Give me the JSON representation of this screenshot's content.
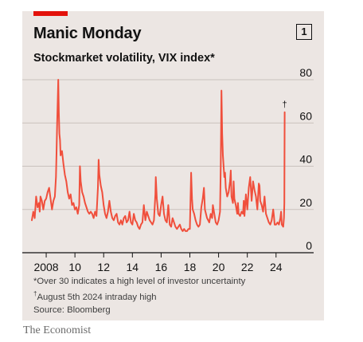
{
  "card": {
    "figure_number": "1"
  },
  "chart_data": {
    "type": "line",
    "title": "Manic Monday",
    "subtitle": "Stockmarket volatility, VIX index*",
    "xlabel": "",
    "ylabel": "",
    "xlim": [
      2007.0,
      2024.9
    ],
    "ylim": [
      0,
      80
    ],
    "y_ticks": [
      0,
      20,
      40,
      60,
      80
    ],
    "x_tick_labels": [
      "2008",
      "10",
      "12",
      "14",
      "16",
      "18",
      "20",
      "22",
      "24"
    ],
    "x_tick_years": [
      2008,
      2010,
      2012,
      2014,
      2016,
      2018,
      2020,
      2022,
      2024
    ],
    "grid": true,
    "line_color": "#f04f3c",
    "annotation": {
      "label": "†",
      "x": 2024.6,
      "y": 65
    },
    "series": [
      {
        "points": [
          [
            2007.0,
            15
          ],
          [
            2007.1,
            19
          ],
          [
            2007.2,
            16
          ],
          [
            2007.3,
            26
          ],
          [
            2007.4,
            21
          ],
          [
            2007.5,
            23
          ],
          [
            2007.55,
            19
          ],
          [
            2007.6,
            26
          ],
          [
            2007.7,
            24
          ],
          [
            2007.8,
            20
          ],
          [
            2007.9,
            24
          ],
          [
            2008.0,
            25
          ],
          [
            2008.1,
            28
          ],
          [
            2008.2,
            30
          ],
          [
            2008.3,
            25
          ],
          [
            2008.4,
            20
          ],
          [
            2008.5,
            24
          ],
          [
            2008.6,
            26
          ],
          [
            2008.68,
            35
          ],
          [
            2008.72,
            46
          ],
          [
            2008.76,
            60
          ],
          [
            2008.8,
            70
          ],
          [
            2008.84,
            80
          ],
          [
            2008.88,
            65
          ],
          [
            2008.92,
            55
          ],
          [
            2008.96,
            52
          ],
          [
            2009.0,
            45
          ],
          [
            2009.1,
            47
          ],
          [
            2009.2,
            41
          ],
          [
            2009.3,
            36
          ],
          [
            2009.4,
            33
          ],
          [
            2009.5,
            28
          ],
          [
            2009.6,
            25
          ],
          [
            2009.7,
            27
          ],
          [
            2009.8,
            22
          ],
          [
            2009.9,
            23
          ],
          [
            2010.0,
            20
          ],
          [
            2010.1,
            21
          ],
          [
            2010.2,
            18
          ],
          [
            2010.3,
            22
          ],
          [
            2010.35,
            40
          ],
          [
            2010.4,
            33
          ],
          [
            2010.5,
            28
          ],
          [
            2010.6,
            26
          ],
          [
            2010.7,
            23
          ],
          [
            2010.8,
            21
          ],
          [
            2010.9,
            19
          ],
          [
            2011.0,
            18
          ],
          [
            2011.1,
            19
          ],
          [
            2011.2,
            18
          ],
          [
            2011.3,
            16
          ],
          [
            2011.4,
            19
          ],
          [
            2011.5,
            17
          ],
          [
            2011.6,
            30
          ],
          [
            2011.65,
            43
          ],
          [
            2011.7,
            36
          ],
          [
            2011.8,
            31
          ],
          [
            2011.9,
            28
          ],
          [
            2012.0,
            22
          ],
          [
            2012.1,
            18
          ],
          [
            2012.2,
            16
          ],
          [
            2012.3,
            19
          ],
          [
            2012.4,
            24
          ],
          [
            2012.5,
            19
          ],
          [
            2012.6,
            16
          ],
          [
            2012.7,
            15
          ],
          [
            2012.8,
            17
          ],
          [
            2012.9,
            18
          ],
          [
            2013.0,
            14
          ],
          [
            2013.1,
            13
          ],
          [
            2013.2,
            15
          ],
          [
            2013.3,
            13
          ],
          [
            2013.4,
            16
          ],
          [
            2013.5,
            17
          ],
          [
            2013.6,
            14
          ],
          [
            2013.7,
            15
          ],
          [
            2013.8,
            19
          ],
          [
            2013.9,
            14
          ],
          [
            2014.0,
            13
          ],
          [
            2014.1,
            18
          ],
          [
            2014.2,
            15
          ],
          [
            2014.3,
            14
          ],
          [
            2014.4,
            12
          ],
          [
            2014.5,
            11
          ],
          [
            2014.6,
            13
          ],
          [
            2014.7,
            14
          ],
          [
            2014.8,
            22
          ],
          [
            2014.9,
            15
          ],
          [
            2015.0,
            19
          ],
          [
            2015.1,
            17
          ],
          [
            2015.2,
            15
          ],
          [
            2015.3,
            14
          ],
          [
            2015.4,
            13
          ],
          [
            2015.5,
            15
          ],
          [
            2015.6,
            27
          ],
          [
            2015.63,
            35
          ],
          [
            2015.7,
            25
          ],
          [
            2015.8,
            18
          ],
          [
            2015.9,
            17
          ],
          [
            2016.0,
            22
          ],
          [
            2016.1,
            26
          ],
          [
            2016.2,
            18
          ],
          [
            2016.3,
            15
          ],
          [
            2016.4,
            14
          ],
          [
            2016.5,
            22
          ],
          [
            2016.55,
            18
          ],
          [
            2016.6,
            13
          ],
          [
            2016.7,
            12
          ],
          [
            2016.8,
            16
          ],
          [
            2016.9,
            14
          ],
          [
            2017.0,
            12
          ],
          [
            2017.1,
            11
          ],
          [
            2017.2,
            12
          ],
          [
            2017.3,
            13
          ],
          [
            2017.4,
            11
          ],
          [
            2017.5,
            10
          ],
          [
            2017.6,
            11
          ],
          [
            2017.7,
            10
          ],
          [
            2017.8,
            10
          ],
          [
            2017.9,
            11
          ],
          [
            2018.0,
            11
          ],
          [
            2018.09,
            37
          ],
          [
            2018.15,
            25
          ],
          [
            2018.2,
            20
          ],
          [
            2018.3,
            18
          ],
          [
            2018.4,
            15
          ],
          [
            2018.5,
            13
          ],
          [
            2018.6,
            12
          ],
          [
            2018.7,
            13
          ],
          [
            2018.8,
            21
          ],
          [
            2018.9,
            25
          ],
          [
            2018.98,
            30
          ],
          [
            2019.05,
            20
          ],
          [
            2019.2,
            16
          ],
          [
            2019.35,
            14
          ],
          [
            2019.45,
            18
          ],
          [
            2019.55,
            16
          ],
          [
            2019.6,
            22
          ],
          [
            2019.7,
            18
          ],
          [
            2019.8,
            14
          ],
          [
            2019.9,
            13
          ],
          [
            2020.0,
            15
          ],
          [
            2020.1,
            19
          ],
          [
            2020.15,
            40
          ],
          [
            2020.2,
            75
          ],
          [
            2020.25,
            55
          ],
          [
            2020.3,
            45
          ],
          [
            2020.4,
            35
          ],
          [
            2020.45,
            37
          ],
          [
            2020.5,
            30
          ],
          [
            2020.6,
            26
          ],
          [
            2020.7,
            28
          ],
          [
            2020.8,
            33
          ],
          [
            2020.85,
            38
          ],
          [
            2020.9,
            26
          ],
          [
            2021.0,
            23
          ],
          [
            2021.05,
            33
          ],
          [
            2021.1,
            25
          ],
          [
            2021.2,
            22
          ],
          [
            2021.3,
            18
          ],
          [
            2021.35,
            23
          ],
          [
            2021.4,
            18
          ],
          [
            2021.5,
            17
          ],
          [
            2021.6,
            19
          ],
          [
            2021.7,
            18
          ],
          [
            2021.75,
            24
          ],
          [
            2021.8,
            17
          ],
          [
            2021.9,
            27
          ],
          [
            2022.0,
            20
          ],
          [
            2022.1,
            30
          ],
          [
            2022.2,
            35
          ],
          [
            2022.3,
            24
          ],
          [
            2022.4,
            33
          ],
          [
            2022.5,
            29
          ],
          [
            2022.6,
            26
          ],
          [
            2022.7,
            20
          ],
          [
            2022.8,
            32
          ],
          [
            2022.85,
            31
          ],
          [
            2022.9,
            24
          ],
          [
            2023.0,
            22
          ],
          [
            2023.1,
            19
          ],
          [
            2023.2,
            26
          ],
          [
            2023.3,
            18
          ],
          [
            2023.4,
            16
          ],
          [
            2023.5,
            14
          ],
          [
            2023.6,
            13
          ],
          [
            2023.7,
            15
          ],
          [
            2023.8,
            20
          ],
          [
            2023.85,
            17
          ],
          [
            2023.9,
            13
          ],
          [
            2024.0,
            13
          ],
          [
            2024.1,
            14
          ],
          [
            2024.2,
            13
          ],
          [
            2024.3,
            16
          ],
          [
            2024.35,
            19
          ],
          [
            2024.4,
            13
          ],
          [
            2024.5,
            12
          ],
          [
            2024.55,
            16
          ],
          [
            2024.58,
            23
          ],
          [
            2024.6,
            65
          ]
        ]
      }
    ]
  },
  "notes": {
    "note1": "*Over 30 indicates a high level of investor uncertainty",
    "note2_mark": "†",
    "note2": "August 5th 2024 intraday high",
    "source": "Source: Bloomberg"
  },
  "publisher": "The Economist"
}
